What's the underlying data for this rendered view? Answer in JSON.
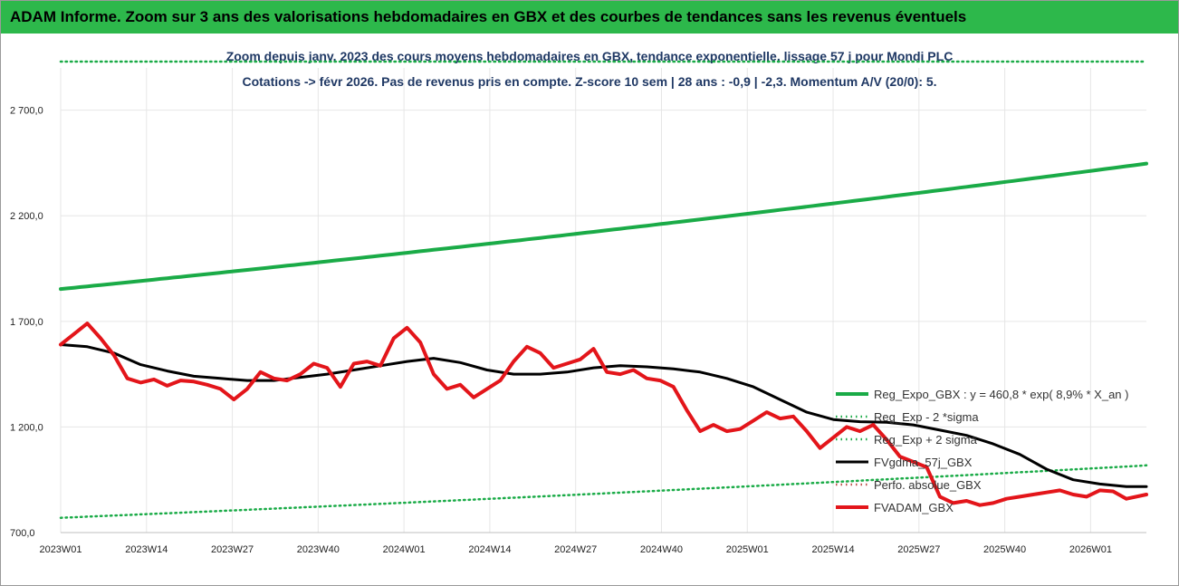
{
  "banner": "ADAM Informe. Zoom sur 3 ans des valorisations hebdomadaires en GBX et des courbes de tendances sans les revenus éventuels",
  "chart_data": {
    "type": "line",
    "title_line1": "Zoom depuis janv. 2023 des cours moyens hebdomadaires en GBX, tendance exponentielle, lissage 57 j pour Mondi PLC",
    "title_line2": "Cotations -> févr 2026.  Pas de revenus pris en compte. Z-score 10 sem | 28 ans : -0,9 | -2,3. Momentum A/V (20/0): 5.",
    "x_ticks": [
      "2023W01",
      "2023W14",
      "2023W27",
      "2023W40",
      "2024W01",
      "2024W14",
      "2024W27",
      "2024W40",
      "2025W01",
      "2025W14",
      "2025W27",
      "2025W40",
      "2026W01"
    ],
    "y_ticks": [
      "700,0",
      "1 200,0",
      "1 700,0",
      "2 200,0",
      "2 700,0"
    ],
    "y_tick_values": [
      700,
      1200,
      1700,
      2200,
      2700
    ],
    "ylim": [
      700,
      2900
    ],
    "xlim": [
      0,
      163
    ],
    "grid": true,
    "legend_position": "right",
    "series": [
      {
        "name": "Reg_Expo_GBX : y = 460,8 * exp( 8,9% *  X_an )",
        "style": "solid-thick",
        "color": "#1aab47",
        "x": [
          0,
          163
        ],
        "y": [
          1853,
          2447
        ],
        "growth": "exponential"
      },
      {
        "name": "Reg_Exp - 2 *sigma",
        "style": "dotted",
        "color": "#1aab47",
        "x": [
          0,
          163
        ],
        "y": [
          770,
          1018
        ],
        "growth": "exponential"
      },
      {
        "name": "Reg_Exp + 2 sigma",
        "style": "dotted",
        "color": "#1aab47",
        "x": [
          0,
          163
        ],
        "y": [
          2930,
          2930
        ]
      },
      {
        "name": "FVgdma_57j_GBX",
        "style": "solid",
        "color": "#000000",
        "x": [
          0,
          4,
          8,
          12,
          16,
          20,
          24,
          28,
          32,
          36,
          40,
          44,
          48,
          52,
          56,
          60,
          64,
          68,
          72,
          76,
          80,
          84,
          88,
          92,
          96,
          100,
          104,
          108,
          112,
          116,
          120,
          124,
          128,
          132,
          136,
          140,
          144,
          148,
          152,
          156,
          160,
          163
        ],
        "y": [
          1590,
          1580,
          1550,
          1495,
          1465,
          1440,
          1430,
          1420,
          1420,
          1435,
          1450,
          1470,
          1490,
          1510,
          1525,
          1505,
          1470,
          1450,
          1450,
          1460,
          1480,
          1490,
          1485,
          1475,
          1460,
          1430,
          1390,
          1330,
          1270,
          1235,
          1225,
          1222,
          1210,
          1185,
          1160,
          1120,
          1070,
          1000,
          950,
          930,
          918,
          918
        ]
      },
      {
        "name": "Perfo. absolue_GBX",
        "style": "dotted",
        "color": "#c0504d",
        "x": [],
        "y": []
      },
      {
        "name": "FVADAM_GBX",
        "style": "solid-thick",
        "color": "#e3151a",
        "x": [
          0,
          2,
          4,
          6,
          8,
          10,
          12,
          14,
          16,
          18,
          20,
          22,
          24,
          26,
          28,
          30,
          32,
          34,
          36,
          38,
          40,
          42,
          44,
          46,
          48,
          50,
          52,
          54,
          56,
          58,
          60,
          62,
          64,
          66,
          68,
          70,
          72,
          74,
          76,
          78,
          80,
          82,
          84,
          86,
          88,
          90,
          92,
          94,
          96,
          98,
          100,
          102,
          104,
          106,
          108,
          110,
          112,
          114,
          116,
          118,
          120,
          122,
          124,
          126,
          128,
          130,
          132,
          134,
          136,
          138,
          140,
          142,
          144,
          146,
          148,
          150,
          152,
          154,
          156,
          158,
          160,
          163
        ],
        "y": [
          1590,
          1640,
          1690,
          1620,
          1540,
          1430,
          1410,
          1425,
          1395,
          1420,
          1415,
          1400,
          1380,
          1330,
          1380,
          1460,
          1430,
          1420,
          1450,
          1500,
          1480,
          1390,
          1500,
          1510,
          1490,
          1620,
          1670,
          1600,
          1450,
          1380,
          1400,
          1340,
          1380,
          1420,
          1510,
          1580,
          1550,
          1480,
          1500,
          1520,
          1570,
          1460,
          1450,
          1470,
          1430,
          1420,
          1390,
          1280,
          1180,
          1210,
          1180,
          1190,
          1230,
          1270,
          1240,
          1250,
          1180,
          1100,
          1150,
          1200,
          1180,
          1210,
          1140,
          1060,
          1035,
          1010,
          870,
          840,
          850,
          830,
          840,
          860,
          870,
          880,
          890,
          900,
          880,
          870,
          900,
          895,
          860,
          880
        ]
      }
    ]
  }
}
